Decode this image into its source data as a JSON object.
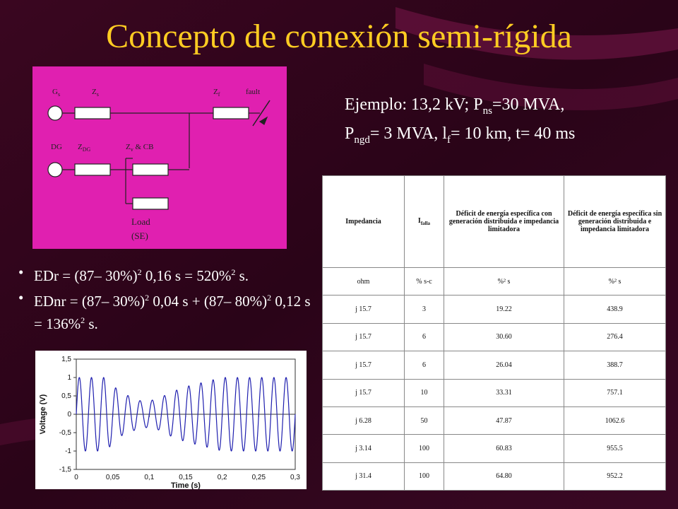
{
  "slide": {
    "title": "Concepto de conexión semi-rígida"
  },
  "circuit": {
    "labels": {
      "gs": "G",
      "gs_sub": "s",
      "zs": "Z",
      "zs_sub": "s",
      "zf": "Z",
      "zf_sub": "f",
      "fault": "fault",
      "dg": "DG",
      "zdg": "Z",
      "zdg_sub": "DG",
      "zv": "Z",
      "zv_sub": "v",
      "zv_suffix": " & CB",
      "load_line1": "Load",
      "load_line2": "(SE)"
    }
  },
  "example": {
    "prefix": "Ejemplo: 13,2 kV; P",
    "sub1": "ns",
    "mid1": "=30 MVA,",
    "line2_prefix": "P",
    "sub2": "ngd",
    "mid2": "= 3 MVA, l",
    "sub3": "f",
    "mid3": "= 10 km, t= 40 ms"
  },
  "bullets": {
    "b1": {
      "a": "EDr = (87– 30%)",
      "sup1": "2",
      "b": " 0,16 s = 520%",
      "sup2": "2",
      "c": " s."
    },
    "b2": {
      "a": "EDnr = (87– 30%)",
      "sup1": "2",
      "b": " 0,04 s + (87– 80%)",
      "sup2": "2",
      "c": " 0,12 s = 136%",
      "sup3": "2",
      "d": " s."
    }
  },
  "table": {
    "h_impedance": "Impedancia",
    "h_ifalla": "I",
    "h_ifalla_sub": "falla",
    "h_def_con": "Déficit de energía específica con generación distribuida e impedancia limitadora",
    "h_def_sin": "Déficit de energía específica sin generación distribuida e impedancia limitadora",
    "units": {
      "c1": "ohm",
      "c2": "%  s-c",
      "c3": "%² s",
      "c4": "%² s"
    },
    "rows": [
      {
        "z": "j 15.7",
        "i": "3",
        "con": "19.22",
        "sin": "438.9"
      },
      {
        "z": "j 15.7",
        "i": "6",
        "con": "30.60",
        "sin": "276.4"
      },
      {
        "z": "j 15.7",
        "i": "6",
        "con": "26.04",
        "sin": "388.7"
      },
      {
        "z": "j 15.7",
        "i": "10",
        "con": "33.31",
        "sin": "757.1"
      },
      {
        "z": "j 6.28",
        "i": "50",
        "con": "47.87",
        "sin": "1062.6"
      },
      {
        "z": "j 3.14",
        "i": "100",
        "con": "60.83",
        "sin": "955.5"
      },
      {
        "z": "j 31.4",
        "i": "100",
        "con": "64.80",
        "sin": "952.2"
      }
    ]
  },
  "chart_data": {
    "type": "line",
    "title": "",
    "xlabel": "Time (s)",
    "ylabel": "Voltage (V)",
    "xlim": [
      0,
      0.3
    ],
    "ylim": [
      -1.5,
      1.5
    ],
    "x_ticks": [
      "0",
      "0,05",
      "0,1",
      "0,15",
      "0,2",
      "0,25",
      "0,3"
    ],
    "y_ticks": [
      "1,5",
      "1",
      "0,5",
      "0",
      "-0,5",
      "-1",
      "-1,5"
    ],
    "frequency_hz": 60,
    "amplitude_envelope": {
      "t": [
        0,
        0.04,
        0.06,
        0.09,
        0.11,
        0.13,
        0.15,
        0.17,
        0.2,
        0.3
      ],
      "amp": [
        1.0,
        1.0,
        0.6,
        0.35,
        0.4,
        0.6,
        0.75,
        0.85,
        1.0,
        1.0
      ]
    },
    "color": "#1f1faf"
  }
}
